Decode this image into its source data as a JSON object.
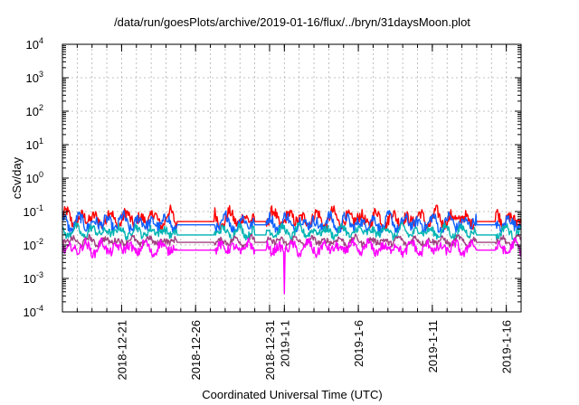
{
  "chart_data": {
    "type": "line",
    "title": "/data/run/goesPlots/archive/2019-01-16/flux/../bryn/31daysMoon.plot",
    "xlabel": "Coordinated Universal Time (UTC)",
    "ylabel": "cSv/day",
    "yscale": "log",
    "ylim": [
      0.0001,
      10000
    ],
    "xlim": [
      "2018-12-17",
      "2019-01-17"
    ],
    "grid": true,
    "legend": "none",
    "y_ticks": [
      {
        "base": "10",
        "exp": "-4",
        "value": 0.0001
      },
      {
        "base": "10",
        "exp": "-3",
        "value": 0.001
      },
      {
        "base": "10",
        "exp": "-2",
        "value": 0.01
      },
      {
        "base": "10",
        "exp": "-1",
        "value": 0.1
      },
      {
        "base": "10",
        "exp": "0",
        "value": 1
      },
      {
        "base": "10",
        "exp": "1",
        "value": 10
      },
      {
        "base": "10",
        "exp": "2",
        "value": 100
      },
      {
        "base": "10",
        "exp": "3",
        "value": 1000
      },
      {
        "base": "10",
        "exp": "4",
        "value": 10000
      }
    ],
    "x_ticks": [
      {
        "label": "2018-12-21",
        "date": "2018-12-21"
      },
      {
        "label": "2018-12-26",
        "date": "2018-12-26"
      },
      {
        "label": "2018-12-31",
        "date": "2018-12-31"
      },
      {
        "label": "2019-1-1",
        "date": "2019-01-01"
      },
      {
        "label": "2019-1-6",
        "date": "2019-01-06"
      },
      {
        "label": "2019-1-11",
        "date": "2019-01-11"
      },
      {
        "label": "2019-1-16",
        "date": "2019-01-16"
      }
    ],
    "series": [
      {
        "color": "#ff0000",
        "base": 0.06,
        "amp": 0.9,
        "floor": 0.05,
        "gaps": [
          [
            "2018-12-24T18:00",
            "2018-12-27T06:00"
          ],
          [
            "2018-12-30T00:00",
            "2018-12-30T18:00"
          ],
          [
            "2019-01-14T00:00",
            "2019-01-15T06:00"
          ]
        ]
      },
      {
        "color": "#1060ff",
        "base": 0.045,
        "amp": 0.85,
        "floor": 0.04,
        "gaps": [
          [
            "2018-12-24T18:00",
            "2018-12-27T06:00"
          ],
          [
            "2018-12-30T00:00",
            "2018-12-30T18:00"
          ],
          [
            "2019-01-14T00:00",
            "2019-01-15T06:00"
          ]
        ]
      },
      {
        "color": "#00b4b4",
        "base": 0.025,
        "amp": 0.6,
        "floor": 0.02,
        "gaps": [
          [
            "2018-12-24T18:00",
            "2018-12-27T06:00"
          ],
          [
            "2018-12-30T00:00",
            "2018-12-30T18:00"
          ],
          [
            "2019-01-14T00:00",
            "2019-01-15T06:00"
          ]
        ]
      },
      {
        "color": "#a04080",
        "base": 0.013,
        "amp": 0.45,
        "floor": 0.012,
        "gaps": [
          [
            "2018-12-24T18:00",
            "2018-12-27T06:00"
          ],
          [
            "2018-12-30T00:00",
            "2018-12-30T18:00"
          ],
          [
            "2019-01-14T00:00",
            "2019-01-15T06:00"
          ]
        ]
      },
      {
        "color": "#ff00ff",
        "base": 0.008,
        "amp": 0.7,
        "floor": 0.007,
        "gaps": [
          [
            "2018-12-24T18:00",
            "2018-12-27T06:00"
          ],
          [
            "2018-12-30T00:00",
            "2018-12-30T18:00"
          ],
          [
            "2019-01-14T00:00",
            "2019-01-15T06:00"
          ]
        ],
        "dip": {
          "date": "2019-01-01T00:00",
          "value": 0.00035
        }
      }
    ]
  }
}
